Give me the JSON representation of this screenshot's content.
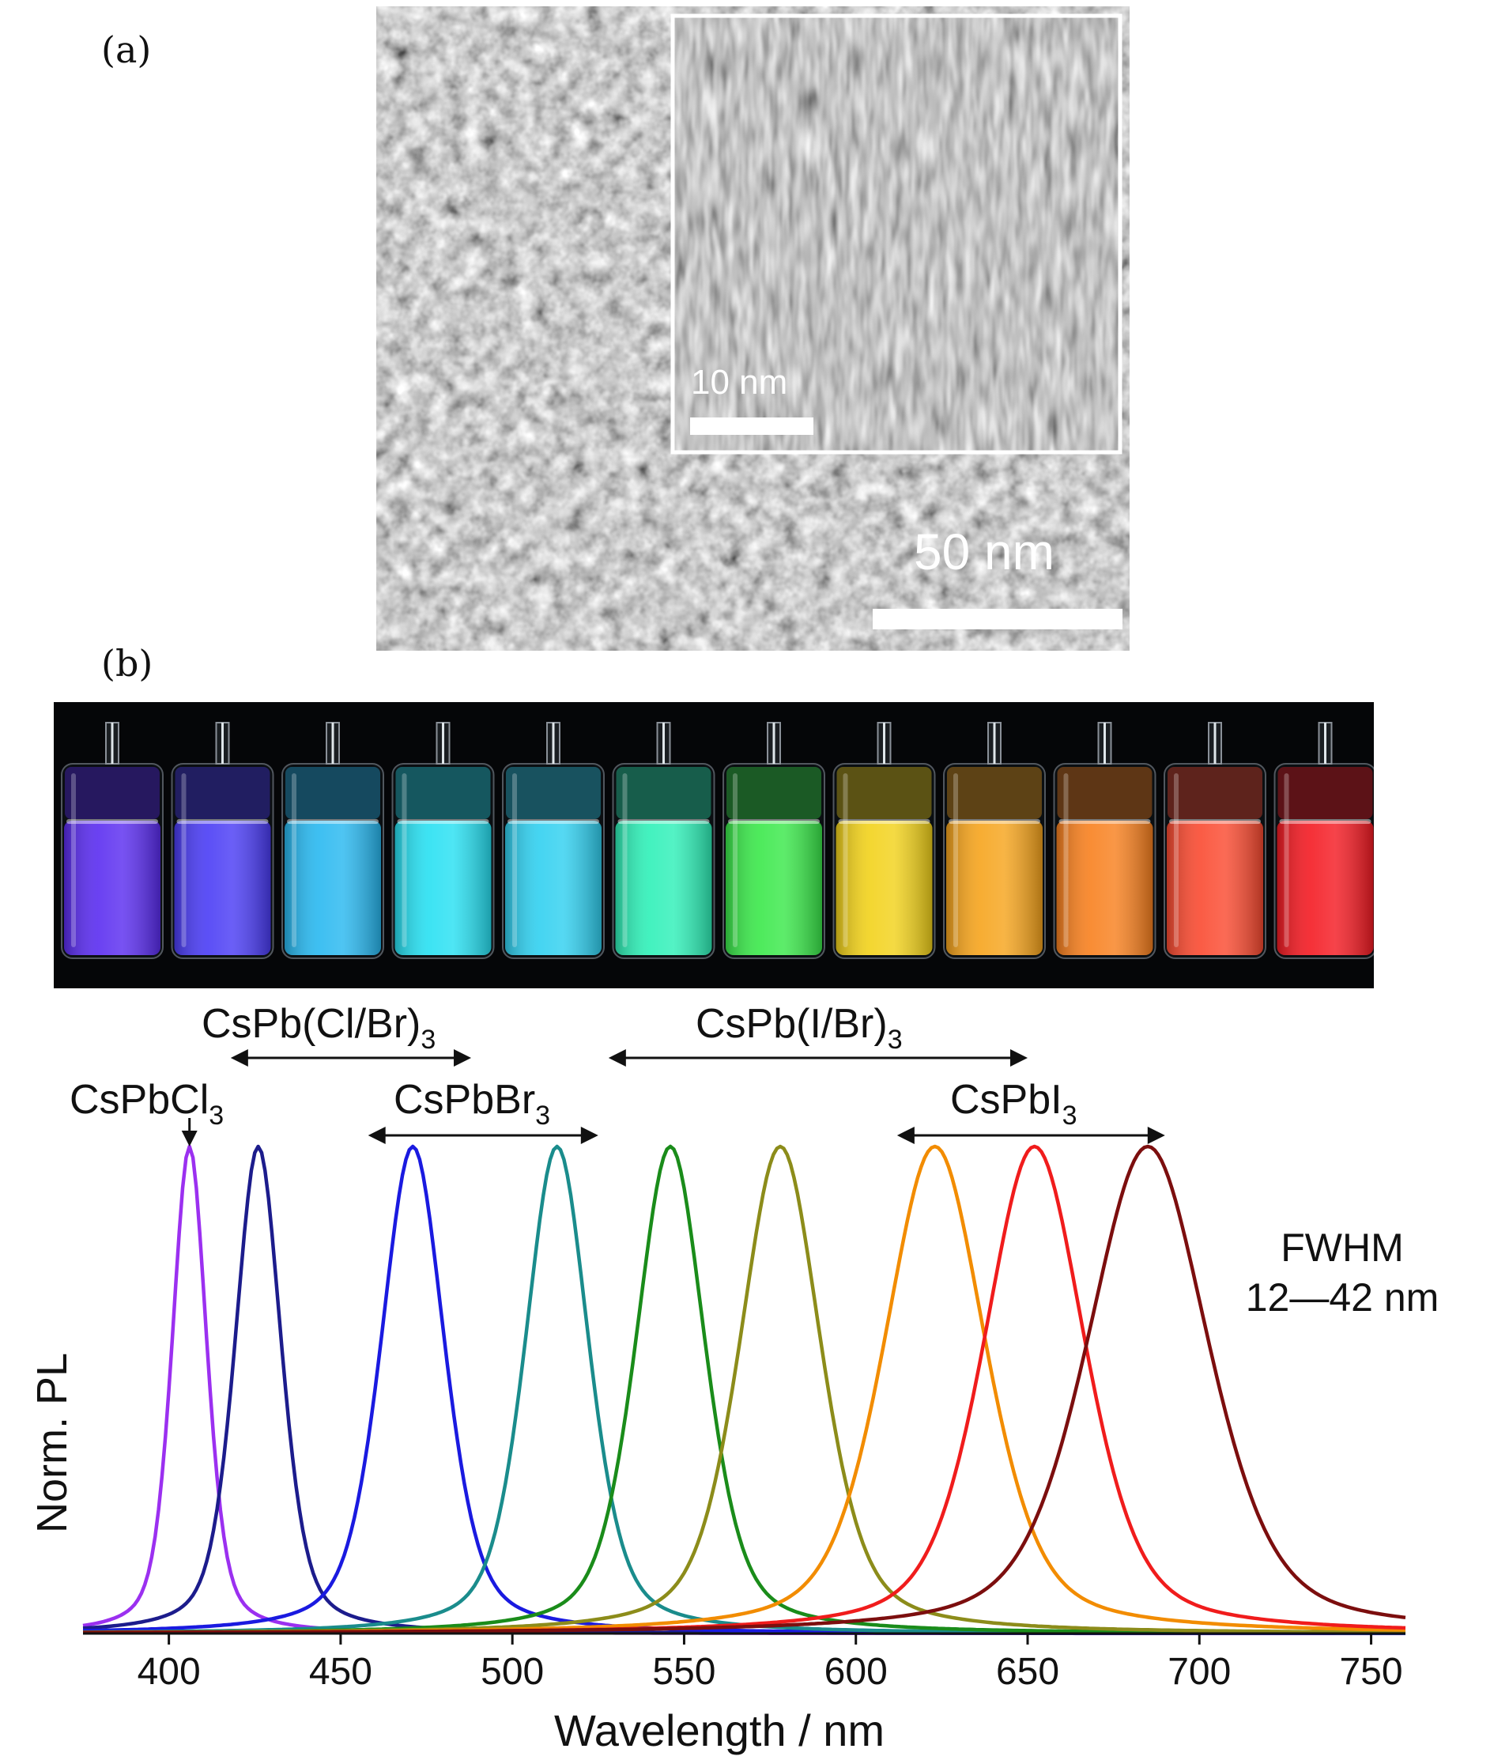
{
  "panel_labels": {
    "a": "(a)",
    "b": "(b)"
  },
  "tem": {
    "inset_scale": "10 nm",
    "main_scale": "50 nm"
  },
  "vials": {
    "colors": [
      "#5a2cf0",
      "#4a3cf5",
      "#28b8f0",
      "#27e0f2",
      "#30d0f0",
      "#2ef0b8",
      "#3ae84a",
      "#f2d21a",
      "#f6a41c",
      "#f8801e",
      "#fa4a30",
      "#f41a22"
    ]
  },
  "chart_data": {
    "type": "line",
    "xlabel": "Wavelength / nm",
    "ylabel": "Norm. PL",
    "xlim": [
      375,
      760
    ],
    "ylim": [
      0,
      1
    ],
    "x_ticks": [
      400,
      450,
      500,
      550,
      600,
      650,
      700,
      750
    ],
    "series": [
      {
        "peak": 406,
        "fwhm": 12,
        "color": "#9b30f0"
      },
      {
        "peak": 426,
        "fwhm": 16,
        "color": "#1c1c8c"
      },
      {
        "peak": 471,
        "fwhm": 22,
        "color": "#1a1ae0"
      },
      {
        "peak": 513,
        "fwhm": 22,
        "color": "#1a8c8c"
      },
      {
        "peak": 546,
        "fwhm": 24,
        "color": "#1a8c1a"
      },
      {
        "peak": 578,
        "fwhm": 28,
        "color": "#8c8c1a"
      },
      {
        "peak": 623,
        "fwhm": 35,
        "color": "#f28c00"
      },
      {
        "peak": 652,
        "fwhm": 35,
        "color": "#f01c1c"
      },
      {
        "peak": 685,
        "fwhm": 42,
        "color": "#7c0e0e"
      }
    ],
    "annotations": [
      {
        "text": "CsPb(Cl/Br)",
        "sub": "3",
        "range": [
          418,
          488
        ]
      },
      {
        "text": "CsPb(I/Br)",
        "sub": "3",
        "range": [
          528,
          650
        ]
      },
      {
        "text": "CsPbCl",
        "sub": "3",
        "arrow_to": 406
      },
      {
        "text": "CsPbBr",
        "sub": "3",
        "range": [
          458,
          525
        ]
      },
      {
        "text": "CsPbI",
        "sub": "3",
        "range": [
          612,
          690
        ]
      }
    ],
    "note": [
      "FWHM",
      "12—42 nm"
    ]
  }
}
